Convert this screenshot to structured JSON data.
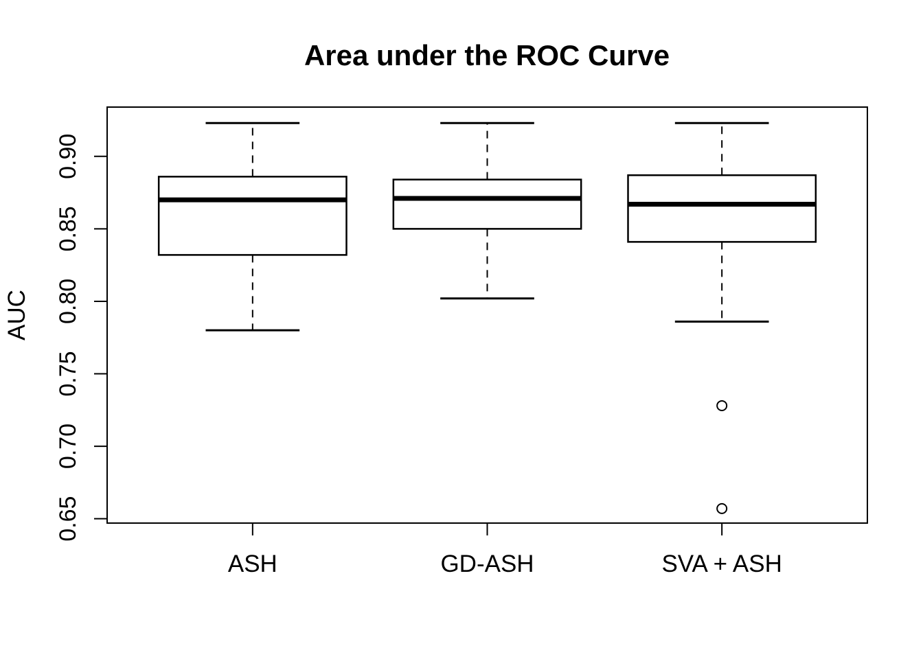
{
  "figure": {
    "background_color": "#ffffff",
    "ink_color": "#000000"
  },
  "chart_data": {
    "type": "boxplot",
    "title": "Area under the ROC Curve",
    "xlabel": "",
    "ylabel": "AUC",
    "categories": [
      "ASH",
      "GD-ASH",
      "SVA + ASH"
    ],
    "ylim": [
      0.647,
      0.934
    ],
    "grid": false,
    "legend_position": "none",
    "yticks": [
      {
        "value": 0.9,
        "label": "0.90"
      },
      {
        "value": 0.85,
        "label": "0.85"
      },
      {
        "value": 0.8,
        "label": "0.80"
      },
      {
        "value": 0.75,
        "label": "0.75"
      },
      {
        "value": 0.7,
        "label": "0.70"
      },
      {
        "value": 0.65,
        "label": "0.65"
      }
    ],
    "series": [
      {
        "name": "ASH",
        "whisker_low": 0.78,
        "q1": 0.832,
        "median": 0.87,
        "q3": 0.886,
        "whisker_high": 0.923,
        "outliers": []
      },
      {
        "name": "GD-ASH",
        "whisker_low": 0.802,
        "q1": 0.85,
        "median": 0.871,
        "q3": 0.884,
        "whisker_high": 0.923,
        "outliers": []
      },
      {
        "name": "SVA + ASH",
        "whisker_low": 0.786,
        "q1": 0.841,
        "median": 0.867,
        "q3": 0.887,
        "whisker_high": 0.923,
        "outliers": [
          0.728,
          0.657
        ]
      }
    ]
  }
}
